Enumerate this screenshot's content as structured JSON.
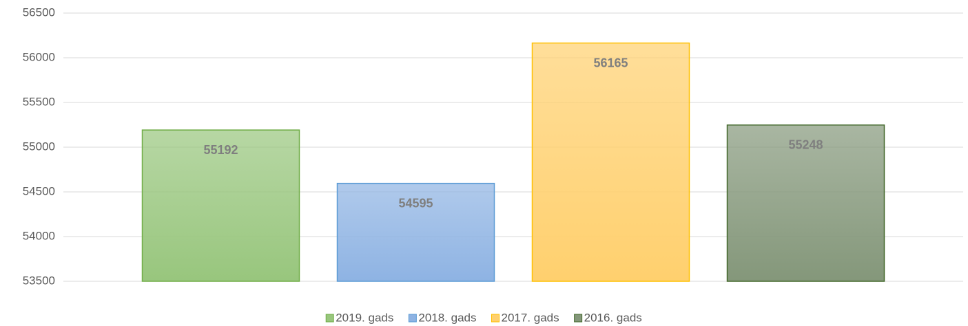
{
  "chart_data": {
    "type": "bar",
    "categories": [
      null
    ],
    "series": [
      {
        "name": "2019. gads",
        "color": "#98c67d",
        "edge_color": "#70ad47",
        "values": [
          55192
        ]
      },
      {
        "name": "2018. gads",
        "color": "#8eb3e3",
        "edge_color": "#5b9bd5",
        "values": [
          54595
        ]
      },
      {
        "name": "2017. gads",
        "color": "#ffd06e",
        "edge_color": "#ffc000",
        "values": [
          56165
        ]
      },
      {
        "name": "2016. gads",
        "color": "#84977a",
        "edge_color": "#43682b",
        "values": [
          55248
        ]
      }
    ],
    "ylim": [
      53500,
      56500
    ],
    "yticks": [
      53500,
      54000,
      54500,
      55000,
      55500,
      56000,
      56500
    ],
    "grid": true,
    "legend": "bottom"
  }
}
